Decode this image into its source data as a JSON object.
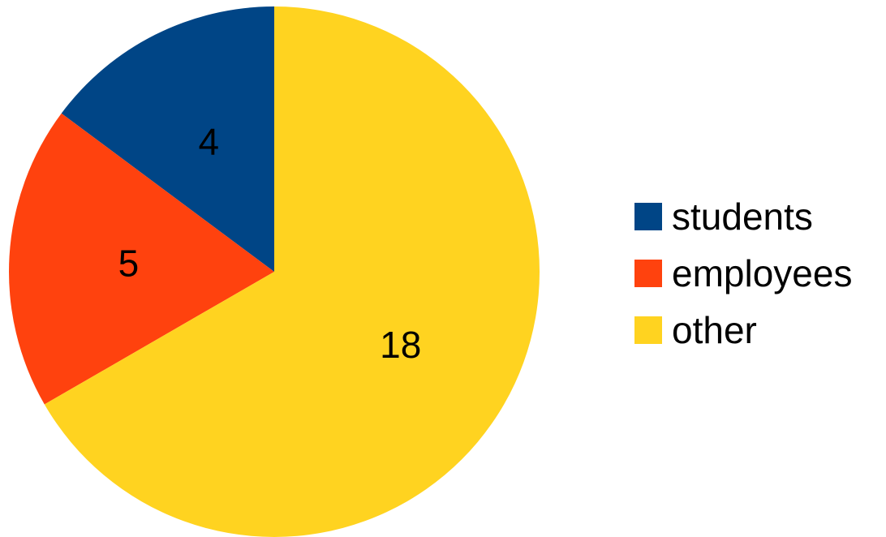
{
  "chart_data": {
    "type": "pie",
    "categories": [
      "students",
      "employees",
      "other"
    ],
    "values": [
      4,
      5,
      18
    ],
    "colors": [
      "#004586",
      "#ff420e",
      "#ffd320"
    ],
    "data_labels": [
      "4",
      "5",
      "18"
    ],
    "legend_position": "right",
    "start_angle": "top",
    "direction": "counter-clockwise",
    "title": ""
  }
}
